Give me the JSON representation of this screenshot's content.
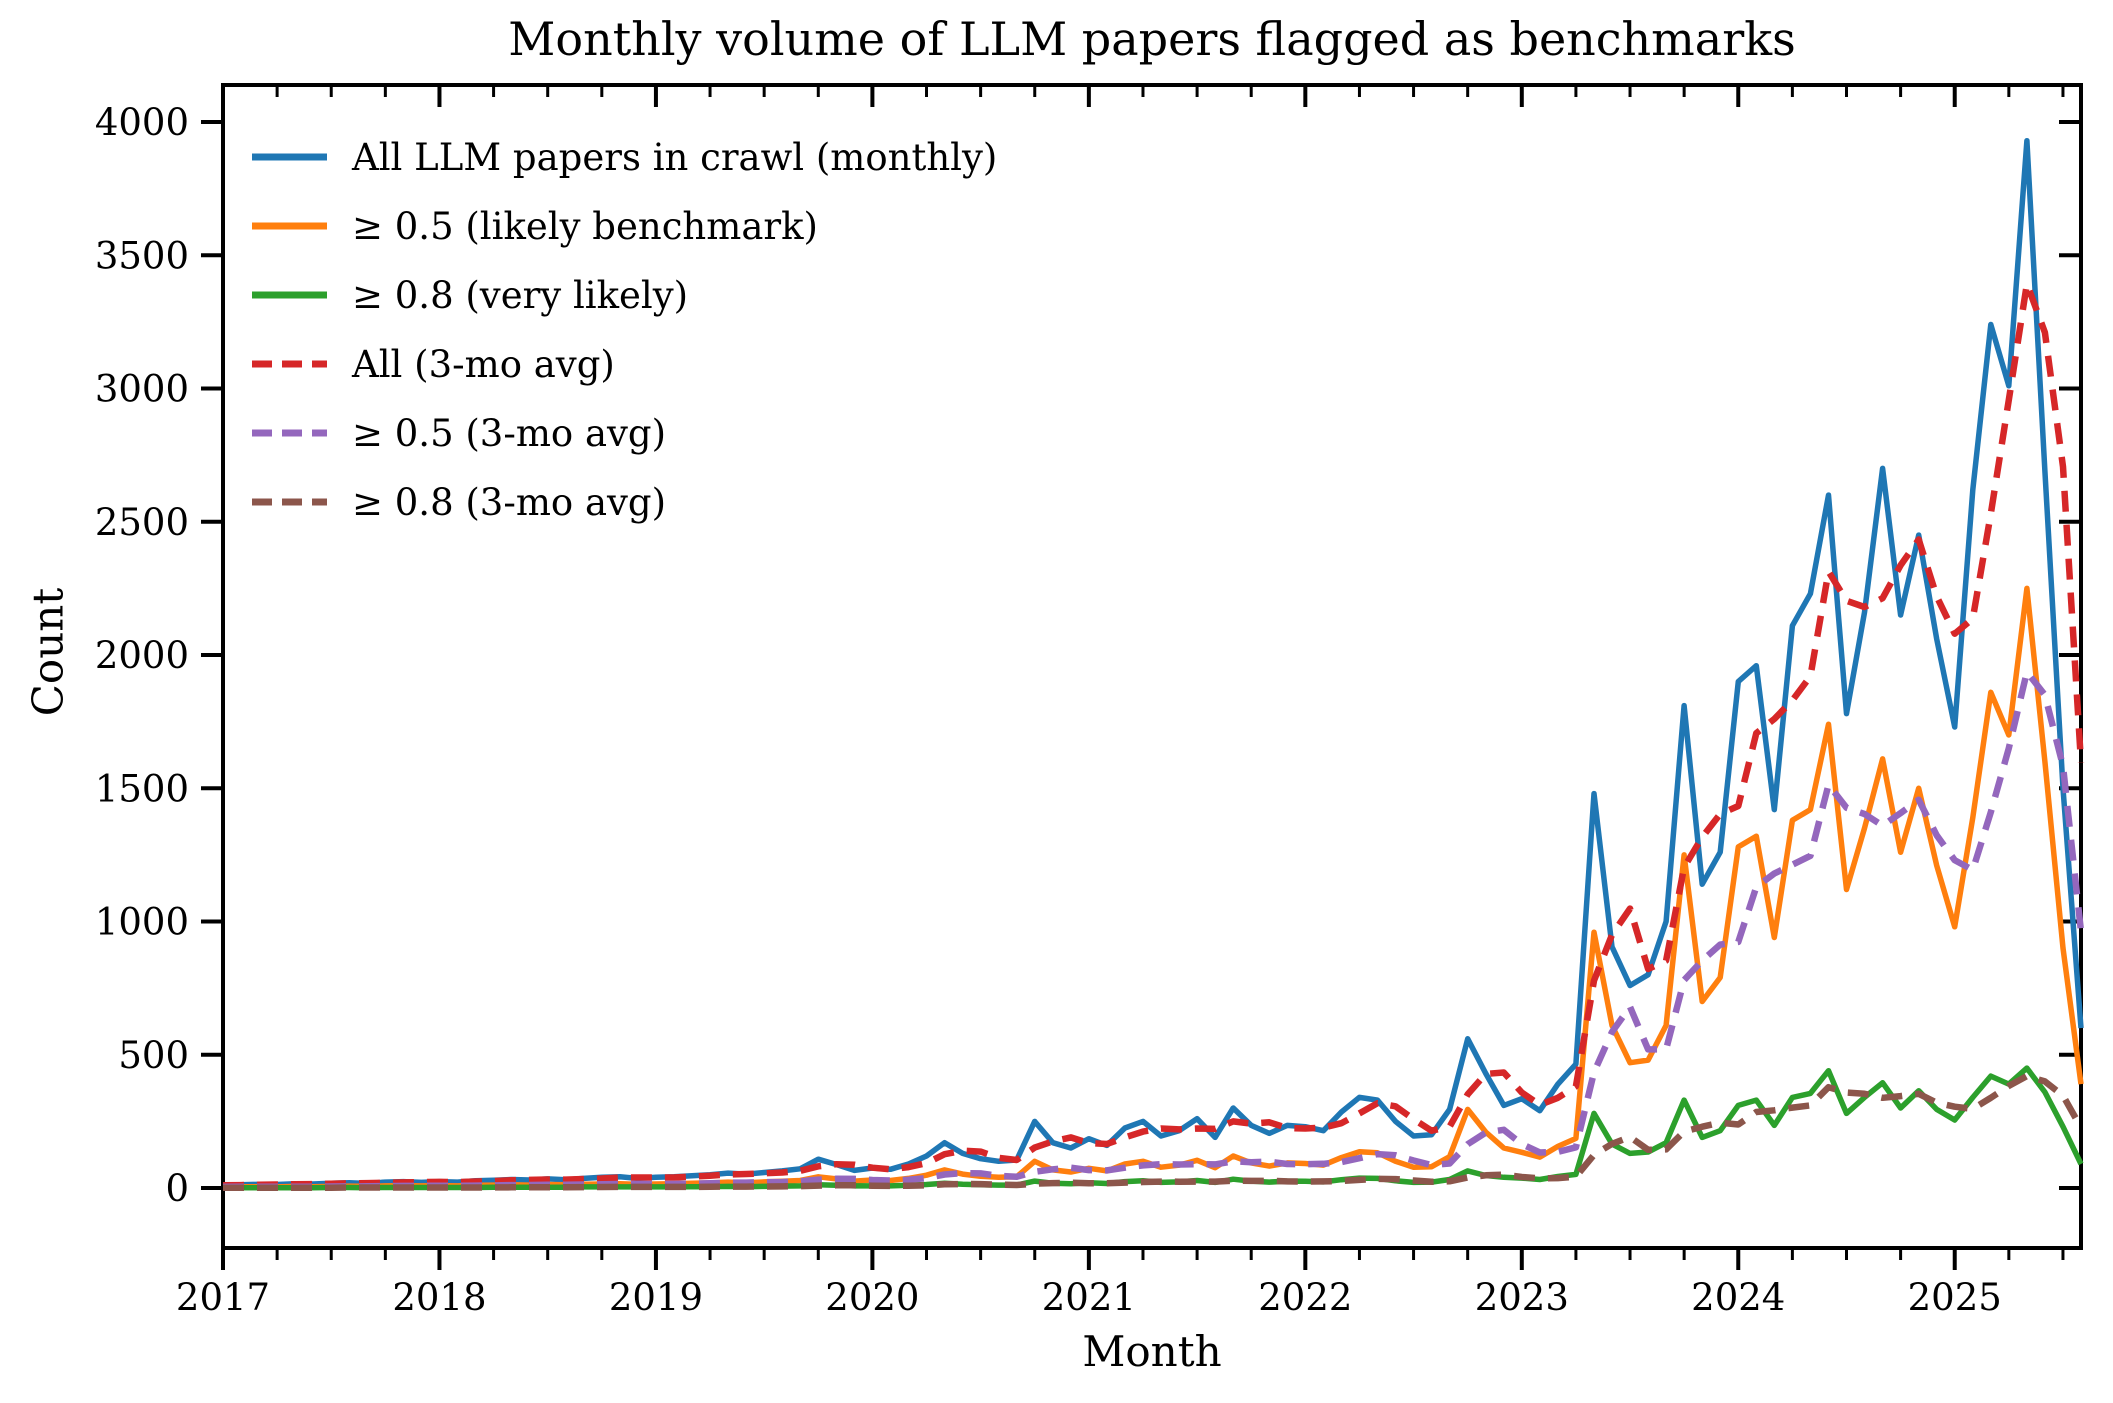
{
  "title": "Monthly volume of LLM papers flagged as benchmarks",
  "axis": {
    "xlabel": "Month",
    "ylabel": "Count",
    "x_year_ticks": [
      "2017",
      "2018",
      "2019",
      "2020",
      "2021",
      "2022",
      "2023",
      "2024",
      "2025"
    ],
    "y_ticks": [
      0,
      500,
      1000,
      1500,
      2000,
      2500,
      3000,
      3500,
      4000
    ]
  },
  "legend": [
    {
      "label": "All LLM papers in crawl (monthly)",
      "color": "#1f77b4",
      "style": "solid"
    },
    {
      "label": "≥ 0.5 (likely benchmark)",
      "color": "#ff7f0e",
      "style": "solid"
    },
    {
      "label": "≥ 0.8 (very likely)",
      "color": "#2ca02c",
      "style": "solid"
    },
    {
      "label": "All (3-mo avg)",
      "color": "#d62728",
      "style": "dashed"
    },
    {
      "label": "≥ 0.5 (3-mo avg)",
      "color": "#9467bd",
      "style": "dashed"
    },
    {
      "label": "≥ 0.8 (3-mo avg)",
      "color": "#8c564b",
      "style": "dashed"
    }
  ],
  "chart_data": {
    "type": "line",
    "title": "Monthly volume of LLM papers flagged as benchmarks",
    "xlabel": "Month",
    "ylabel": "Count",
    "x_range": [
      "2017-01",
      "2025-08"
    ],
    "ylim": [
      0,
      4000
    ],
    "grid": false,
    "legend_position": "upper-left",
    "x_months": [
      "2017-01",
      "2017-02",
      "2017-03",
      "2017-04",
      "2017-05",
      "2017-06",
      "2017-07",
      "2017-08",
      "2017-09",
      "2017-10",
      "2017-11",
      "2017-12",
      "2018-01",
      "2018-02",
      "2018-03",
      "2018-04",
      "2018-05",
      "2018-06",
      "2018-07",
      "2018-08",
      "2018-09",
      "2018-10",
      "2018-11",
      "2018-12",
      "2019-01",
      "2019-02",
      "2019-03",
      "2019-04",
      "2019-05",
      "2019-06",
      "2019-07",
      "2019-08",
      "2019-09",
      "2019-10",
      "2019-11",
      "2019-12",
      "2020-01",
      "2020-02",
      "2020-03",
      "2020-04",
      "2020-05",
      "2020-06",
      "2020-07",
      "2020-08",
      "2020-09",
      "2020-10",
      "2020-11",
      "2020-12",
      "2021-01",
      "2021-02",
      "2021-03",
      "2021-04",
      "2021-05",
      "2021-06",
      "2021-07",
      "2021-08",
      "2021-09",
      "2021-10",
      "2021-11",
      "2021-12",
      "2022-01",
      "2022-02",
      "2022-03",
      "2022-04",
      "2022-05",
      "2022-06",
      "2022-07",
      "2022-08",
      "2022-09",
      "2022-10",
      "2022-11",
      "2022-12",
      "2023-01",
      "2023-02",
      "2023-03",
      "2023-04",
      "2023-05",
      "2023-06",
      "2023-07",
      "2023-08",
      "2023-09",
      "2023-10",
      "2023-11",
      "2023-12",
      "2024-01",
      "2024-02",
      "2024-03",
      "2024-04",
      "2024-05",
      "2024-06",
      "2024-07",
      "2024-08",
      "2024-09",
      "2024-10",
      "2024-11",
      "2024-12",
      "2025-01",
      "2025-02",
      "2025-03",
      "2025-04",
      "2025-05",
      "2025-06",
      "2025-07",
      "2025-08"
    ],
    "series": [
      {
        "name": "All LLM papers in crawl (monthly)",
        "color": "#1f77b4",
        "style": "solid",
        "values": [
          10,
          12,
          14,
          13,
          16,
          15,
          18,
          20,
          17,
          22,
          24,
          21,
          24,
          22,
          27,
          29,
          32,
          30,
          34,
          31,
          36,
          40,
          42,
          36,
          40,
          42,
          46,
          50,
          56,
          52,
          58,
          64,
          72,
          108,
          88,
          66,
          75,
          70,
          90,
          120,
          170,
          130,
          110,
          100,
          105,
          250,
          170,
          150,
          185,
          160,
          225,
          250,
          195,
          215,
          260,
          190,
          300,
          235,
          205,
          235,
          230,
          215,
          285,
          340,
          330,
          250,
          195,
          200,
          295,
          560,
          430,
          310,
          335,
          290,
          390,
          465,
          1480,
          905,
          760,
          800,
          1000,
          1810,
          1140,
          1260,
          1900,
          1960,
          1420,
          2110,
          2230,
          2600,
          1780,
          2160,
          2700,
          2150,
          2450,
          2060,
          1730,
          2620,
          3240,
          3010,
          3930,
          2690,
          1500,
          600
        ]
      },
      {
        "name": "≥ 0.5 (likely benchmark)",
        "color": "#ff7f0e",
        "style": "solid",
        "values": [
          4,
          5,
          5,
          4,
          6,
          5,
          6,
          7,
          6,
          8,
          9,
          8,
          9,
          8,
          10,
          11,
          12,
          11,
          13,
          12,
          14,
          15,
          16,
          14,
          15,
          16,
          18,
          19,
          22,
          20,
          23,
          25,
          28,
          42,
          34,
          26,
          30,
          28,
          36,
          48,
          68,
          52,
          44,
          40,
          42,
          100,
          68,
          60,
          74,
          64,
          90,
          100,
          78,
          86,
          104,
          76,
          120,
          94,
          82,
          94,
          92,
          86,
          114,
          136,
          132,
          100,
          78,
          80,
          118,
          295,
          210,
          150,
          134,
          116,
          156,
          186,
          960,
          610,
          470,
          480,
          610,
          1250,
          700,
          790,
          1280,
          1320,
          940,
          1380,
          1420,
          1740,
          1120,
          1350,
          1610,
          1260,
          1500,
          1210,
          980,
          1390,
          1860,
          1700,
          2250,
          1600,
          900,
          390
        ]
      },
      {
        "name": "≥ 0.8 (very likely)",
        "color": "#2ca02c",
        "style": "solid",
        "values": [
          1,
          1,
          1,
          1,
          1,
          1,
          2,
          2,
          1,
          2,
          2,
          2,
          2,
          2,
          2,
          3,
          3,
          3,
          3,
          3,
          4,
          4,
          4,
          4,
          4,
          4,
          5,
          5,
          6,
          5,
          6,
          7,
          8,
          12,
          10,
          8,
          8,
          8,
          10,
          13,
          18,
          14,
          12,
          11,
          11,
          26,
          18,
          16,
          20,
          17,
          24,
          27,
          21,
          23,
          28,
          21,
          33,
          26,
          22,
          26,
          25,
          23,
          31,
          37,
          36,
          27,
          21,
          22,
          32,
          64,
          47,
          40,
          37,
          32,
          43,
          51,
          280,
          165,
          130,
          135,
          170,
          330,
          190,
          215,
          310,
          330,
          235,
          340,
          355,
          440,
          280,
          340,
          395,
          300,
          365,
          295,
          255,
          340,
          420,
          390,
          450,
          360,
          230,
          90
        ]
      },
      {
        "name": "All (3-mo avg)",
        "color": "#d62728",
        "style": "dashed",
        "values": [
          10,
          11,
          12,
          13,
          14.3,
          14.7,
          16.3,
          17.7,
          18.3,
          19.7,
          21,
          22.3,
          23,
          22.3,
          24.3,
          26,
          29.3,
          30.3,
          32,
          31.7,
          33.7,
          35.7,
          39.3,
          39.3,
          39.3,
          39.3,
          42.7,
          46,
          50.7,
          52.7,
          55.3,
          58,
          64.7,
          81.3,
          89.3,
          87.3,
          76.3,
          70.3,
          78.3,
          93.3,
          126.7,
          140,
          136.7,
          113.3,
          105,
          151.7,
          175,
          190,
          168.3,
          165,
          190,
          211.7,
          223.3,
          220,
          223.3,
          221.7,
          250,
          241.7,
          246.7,
          225,
          223.3,
          226.7,
          243.3,
          280,
          318.3,
          306.7,
          258.3,
          215,
          230,
          351.7,
          428.3,
          433.3,
          358.3,
          311.7,
          338.3,
          381.7,
          778.3,
          950,
          1048.3,
          821.7,
          853.3,
          1203.3,
          1316.7,
          1403.3,
          1433.3,
          1706.7,
          1760,
          1830,
          1920,
          2313.3,
          2203.3,
          2180,
          2213.3,
          2336.7,
          2433.3,
          2220,
          2080,
          2136.7,
          2530,
          2956.7,
          3393.3,
          3210,
          2706.7,
          1596.7
        ]
      },
      {
        "name": "≥ 0.5 (3-mo avg)",
        "color": "#9467bd",
        "style": "dashed",
        "values": [
          4,
          4.5,
          4.7,
          4.7,
          5,
          5,
          5.7,
          6,
          6.3,
          7,
          7.7,
          8.3,
          8.7,
          8.3,
          9,
          9.7,
          11,
          11.3,
          12,
          12,
          13,
          13.7,
          15,
          15,
          15,
          15,
          16.3,
          17.7,
          19.7,
          20.3,
          21.7,
          22.7,
          25.3,
          31.7,
          34.7,
          34,
          30,
          28,
          31.3,
          37.3,
          50.7,
          56,
          54.7,
          45.3,
          42,
          60.7,
          70,
          76,
          67.3,
          66,
          76,
          84.7,
          89.3,
          88,
          89.3,
          88.7,
          100,
          96.7,
          98.7,
          90,
          89.3,
          90.7,
          97.3,
          112,
          127.3,
          122.7,
          103.3,
          86,
          92,
          164.3,
          207.7,
          218.3,
          164.7,
          133.3,
          135.3,
          152.7,
          434,
          585.3,
          680,
          520,
          520,
          780,
          853.3,
          913.3,
          923.3,
          1130,
          1180,
          1213.3,
          1246.7,
          1513.3,
          1426.7,
          1403.3,
          1360,
          1406.7,
          1456.7,
          1323.3,
          1230,
          1193.3,
          1410,
          1650,
          1936.7,
          1850,
          1583.3,
          963.3
        ]
      },
      {
        "name": "≥ 0.8 (3-mo avg)",
        "color": "#8c564b",
        "style": "dashed",
        "values": [
          1,
          1,
          1,
          1,
          1,
          1,
          1.3,
          1.7,
          1.7,
          1.7,
          1.7,
          2,
          2,
          2,
          2,
          2.3,
          2.7,
          3,
          3,
          3,
          3.3,
          3.7,
          4,
          4,
          4,
          4,
          4.3,
          4.7,
          5.3,
          5.3,
          5.7,
          6,
          7,
          9,
          10,
          10,
          8.7,
          8,
          8.7,
          10.3,
          13.7,
          15,
          14.7,
          12.3,
          11.3,
          16,
          18.3,
          20,
          18,
          17.7,
          20.3,
          22.7,
          24,
          23.7,
          24,
          24,
          27.3,
          26.7,
          27,
          24.7,
          24.3,
          24.7,
          26.3,
          30.3,
          34.7,
          33.3,
          28,
          23.3,
          25,
          39.3,
          47.7,
          50.3,
          41.3,
          36.3,
          37.3,
          42,
          124.7,
          165.3,
          191.7,
          143.3,
          145,
          211.7,
          230,
          245,
          238.3,
          285,
          291.7,
          301.7,
          310,
          378.3,
          358.3,
          353.3,
          338.3,
          345,
          353.3,
          320,
          305,
          296.7,
          338.3,
          383.3,
          420,
          400,
          346.7,
          226.7
        ]
      }
    ]
  }
}
